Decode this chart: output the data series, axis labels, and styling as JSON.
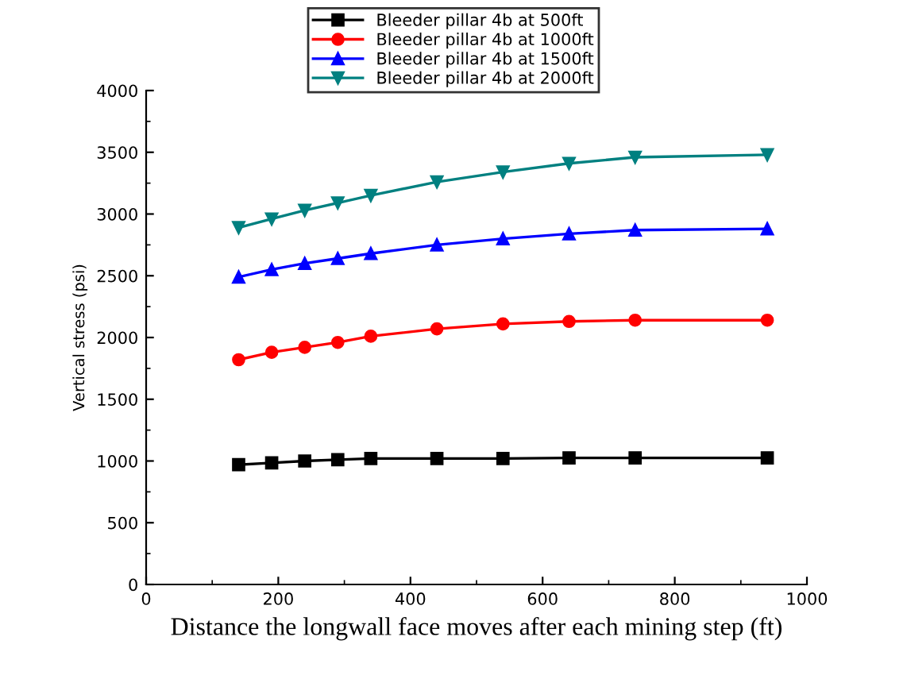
{
  "chart_data": {
    "type": "line",
    "xlabel": "Distance the longwall face moves after each mining step (ft)",
    "ylabel": "Vertical stress (psi)",
    "x": [
      140,
      190,
      240,
      290,
      340,
      440,
      540,
      640,
      740,
      940
    ],
    "series": [
      {
        "name": "Bleeder pillar 4b at 500ft",
        "color": "#000000",
        "marker": "square",
        "values": [
          970,
          985,
          1000,
          1010,
          1020,
          1020,
          1020,
          1025,
          1025,
          1025
        ]
      },
      {
        "name": "Bleeder pillar 4b at 1000ft",
        "color": "#ff0000",
        "marker": "circle",
        "values": [
          1820,
          1880,
          1920,
          1960,
          2010,
          2070,
          2110,
          2130,
          2140,
          2140
        ]
      },
      {
        "name": "Bleeder pillar 4b at 1500ft",
        "color": "#0000ff",
        "marker": "triangle",
        "values": [
          2490,
          2550,
          2600,
          2640,
          2680,
          2750,
          2800,
          2840,
          2870,
          2880
        ]
      },
      {
        "name": "Bleeder pillar 4b at 2000ft",
        "color": "#008080",
        "marker": "triangle_down",
        "values": [
          2890,
          2960,
          3030,
          3090,
          3150,
          3260,
          3340,
          3410,
          3460,
          3480
        ]
      }
    ],
    "xlim": [
      0,
      1000
    ],
    "xticks": [
      0,
      200,
      400,
      600,
      800,
      1000
    ],
    "ylim": [
      0,
      4000
    ],
    "yticks": [
      0,
      500,
      1000,
      1500,
      2000,
      2500,
      3000,
      3500,
      4000
    ],
    "grid": false,
    "legend": "top"
  }
}
